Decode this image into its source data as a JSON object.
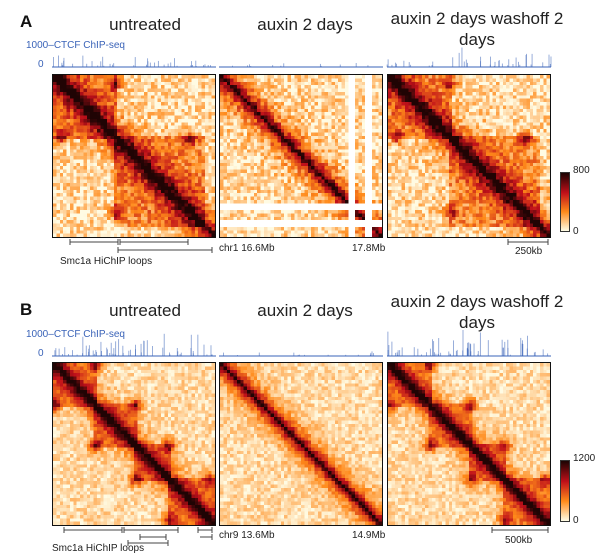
{
  "panels": [
    {
      "letter": "A",
      "conditions": [
        "untreated",
        "auxin 2 days",
        "auxin 2 days washoff 2 days"
      ],
      "chip_label": "CTCF ChIP-seq",
      "chip_ymax": "1000",
      "chip_ymin": "0",
      "loops_label": "Smc1a HiChIP loops",
      "coord_start": "chr1 16.6Mb",
      "coord_end": "17.8Mb",
      "scale_bar": "250kb",
      "colorbar_max": "800",
      "colorbar_min": "0",
      "colors": {
        "low": "#fffbe3",
        "mid": "#ff8a1a",
        "high": "#c0101a",
        "max": "#200404",
        "chip": "#3a63b8"
      }
    },
    {
      "letter": "B",
      "conditions": [
        "untreated",
        "auxin 2 days",
        "auxin 2 days washoff 2 days"
      ],
      "chip_label": "CTCF ChIP-seq",
      "chip_ymax": "1000",
      "chip_ymin": "0",
      "loops_label": "Smc1a HiChIP loops",
      "coord_start": "chr9 13.6Mb",
      "coord_end": "14.9Mb",
      "scale_bar": "500kb",
      "colorbar_max": "1200",
      "colorbar_min": "0",
      "colors": {
        "low": "#fffbe3",
        "mid": "#ff8a1a",
        "high": "#c0101a",
        "max": "#200404",
        "chip": "#3a63b8"
      }
    }
  ]
}
